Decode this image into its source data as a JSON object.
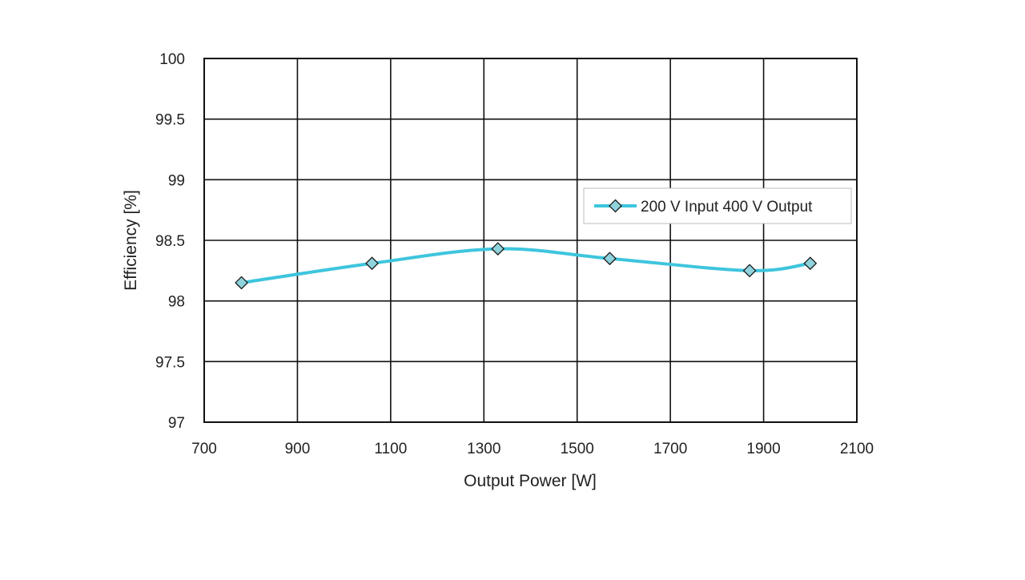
{
  "chart_data": {
    "type": "line",
    "title": "",
    "xlabel": "Output Power [W]",
    "ylabel": "Efficiency [%]",
    "xlim": [
      700,
      2100
    ],
    "ylim": [
      97,
      100
    ],
    "x_ticks": [
      700,
      900,
      1100,
      1300,
      1500,
      1700,
      1900,
      2100
    ],
    "y_ticks": [
      97,
      97.5,
      98,
      98.5,
      99,
      99.5,
      100
    ],
    "grid": true,
    "legend_position": "right",
    "series": [
      {
        "name": "200 V Input 400 V Output",
        "color": "#3ec5dd",
        "marker_color": "#8fd3dc",
        "marker": "diamond",
        "x": [
          780,
          1060,
          1330,
          1570,
          1870,
          2000
        ],
        "y": [
          98.15,
          98.31,
          98.43,
          98.35,
          98.25,
          98.31
        ]
      }
    ]
  }
}
